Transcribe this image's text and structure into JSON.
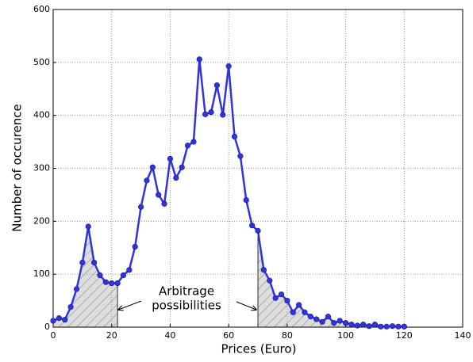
{
  "chart_data": {
    "type": "line",
    "xlabel": "Prices (Euro)",
    "ylabel": "Number of occurence",
    "x": [
      0,
      2,
      4,
      6,
      8,
      10,
      12,
      14,
      16,
      18,
      20,
      22,
      24,
      26,
      28,
      30,
      32,
      34,
      36,
      38,
      40,
      42,
      44,
      46,
      48,
      50,
      52,
      54,
      56,
      58,
      60,
      62,
      64,
      66,
      68,
      70,
      72,
      74,
      76,
      78,
      80,
      82,
      84,
      86,
      88,
      90,
      92,
      94,
      96,
      98,
      100,
      102,
      104,
      106,
      108,
      110,
      112,
      114,
      116,
      118,
      120
    ],
    "values": [
      12,
      17,
      14,
      38,
      72,
      122,
      190,
      122,
      98,
      85,
      83,
      83,
      98,
      108,
      152,
      227,
      277,
      302,
      250,
      233,
      318,
      282,
      302,
      343,
      350,
      506,
      402,
      406,
      457,
      401,
      493,
      360,
      323,
      240,
      192,
      182,
      108,
      88,
      55,
      62,
      50,
      28,
      42,
      28,
      20,
      15,
      10,
      20,
      8,
      12,
      8,
      5,
      3,
      5,
      2,
      5,
      1,
      1,
      2,
      1,
      1
    ],
    "color": "#3333dd",
    "xlim": [
      0,
      140
    ],
    "ylim": [
      0,
      600
    ],
    "xticks": [
      0,
      20,
      40,
      60,
      80,
      100,
      120,
      140
    ],
    "yticks": [
      0,
      100,
      200,
      300,
      400,
      500,
      600
    ],
    "grid": true,
    "shaded_ranges": [
      [
        0,
        22
      ],
      [
        70,
        120
      ]
    ],
    "annotation": [
      "Arbitrage",
      "possibilities"
    ]
  }
}
